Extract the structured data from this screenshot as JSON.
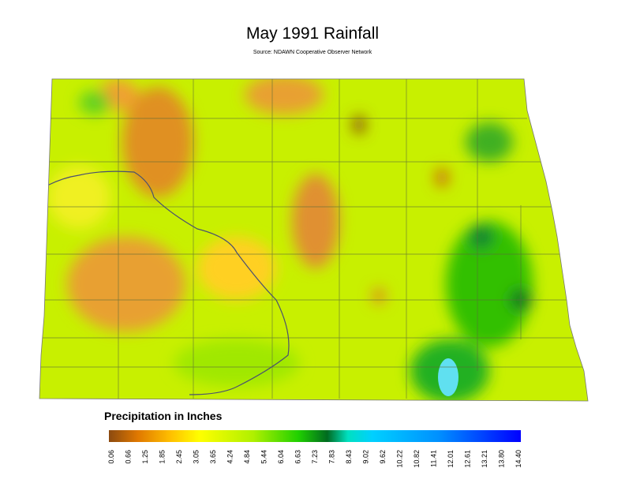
{
  "header": {
    "title": "May 1991 Rainfall",
    "source": "Source: NDAWN Cooperative Observer Network"
  },
  "legend": {
    "title": "Precipitation in Inches",
    "labels": [
      "0.06",
      "0.66",
      "1.25",
      "1.85",
      "2.45",
      "3.05",
      "3.65",
      "4.24",
      "4.84",
      "5.44",
      "6.04",
      "6.63",
      "7.23",
      "7.83",
      "8.43",
      "9.02",
      "9.62",
      "10.22",
      "10.82",
      "11.41",
      "12.01",
      "12.61",
      "13.21",
      "13.80",
      "14.40"
    ]
  }
}
